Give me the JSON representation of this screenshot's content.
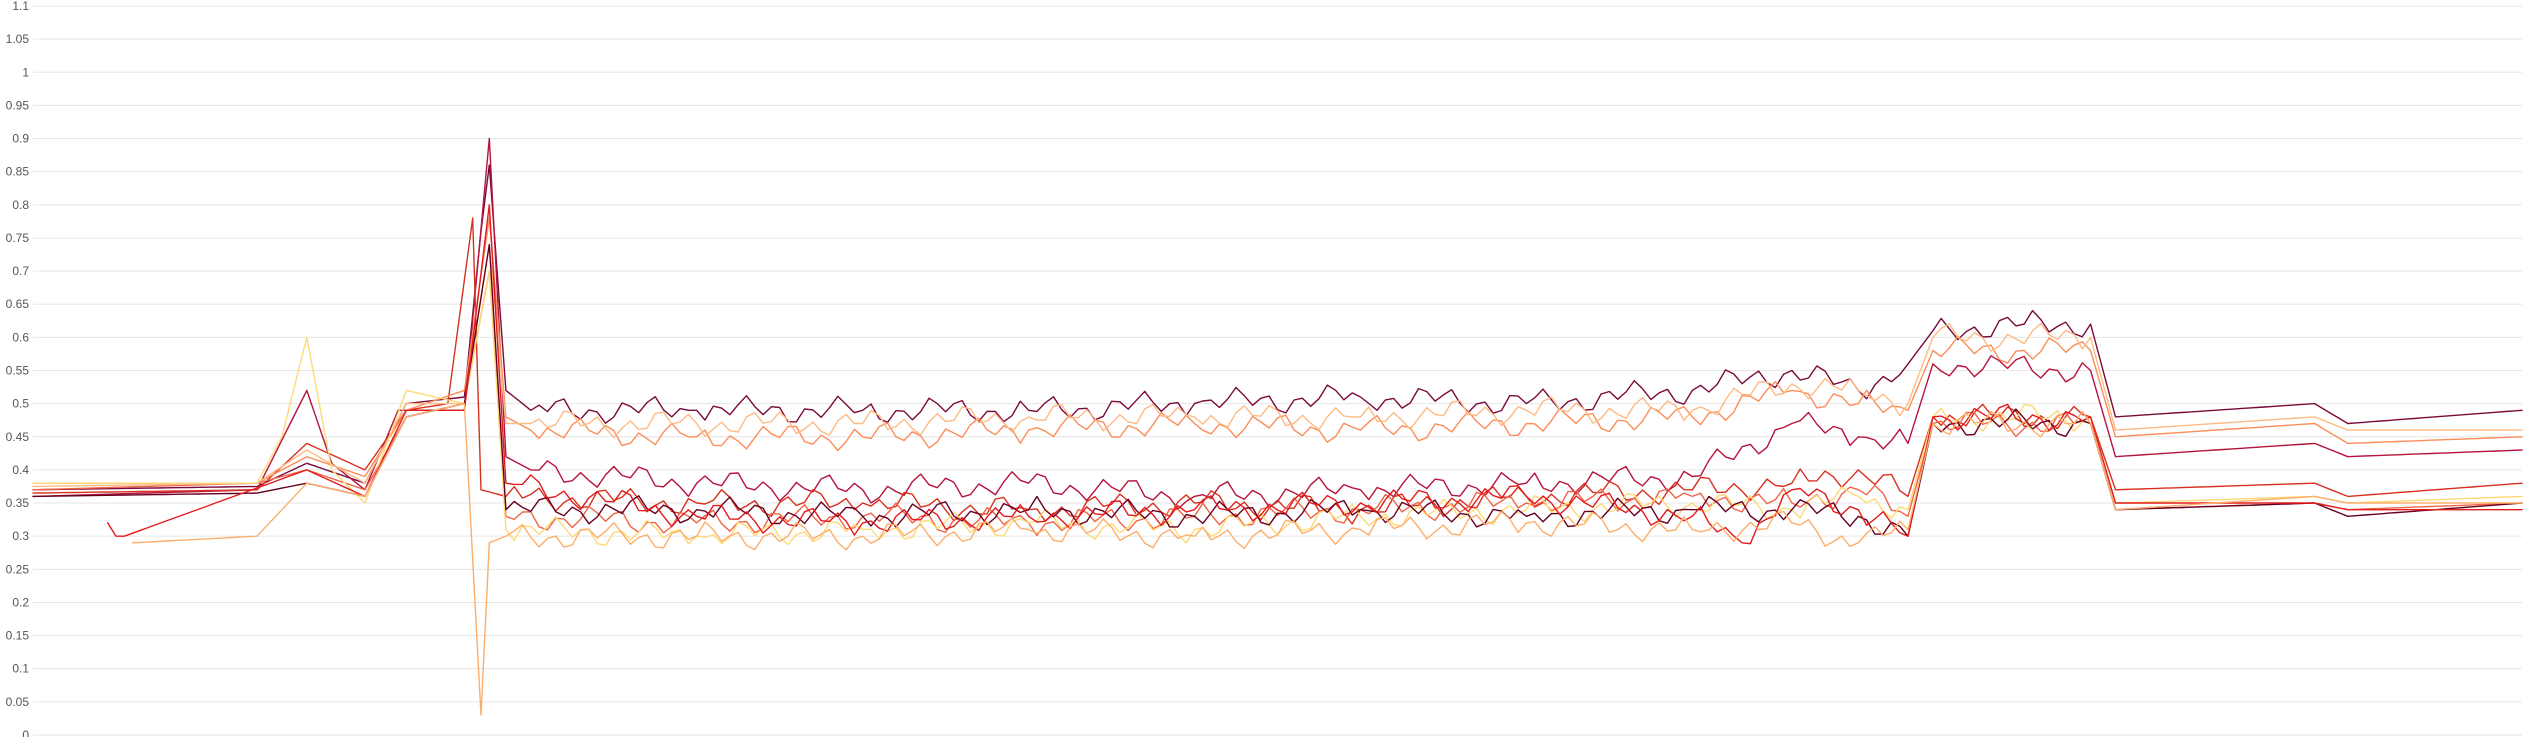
{
  "chart_data": {
    "type": "line",
    "title": "",
    "xlabel": "",
    "ylabel": "",
    "ylim": [
      0,
      1.1
    ],
    "yticks": [
      "0",
      "0.05",
      "0.1",
      "0.15",
      "0.2",
      "0.25",
      "0.3",
      "0.35",
      "0.4",
      "0.45",
      "0.5",
      "0.55",
      "0.6",
      "0.65",
      "0.7",
      "0.75",
      "0.8",
      "0.85",
      "0.9",
      "0.95",
      "1",
      "1.05",
      "1.1"
    ],
    "grid": true,
    "legend": "none",
    "x_count": 300,
    "series": [
      {
        "color": "#7a0a3b",
        "points": [
          [
            0,
            0.37
          ],
          [
            27,
            0.375
          ],
          [
            33,
            0.41
          ],
          [
            40,
            0.38
          ],
          [
            45,
            0.5
          ],
          [
            52,
            0.51
          ],
          [
            54,
            0.76
          ],
          [
            55,
            0.86
          ],
          [
            57,
            0.52
          ],
          [
            60,
            0.49
          ],
          [
            80,
            0.49
          ],
          [
            100,
            0.49
          ],
          [
            120,
            0.49
          ],
          [
            140,
            0.5
          ],
          [
            160,
            0.51
          ],
          [
            180,
            0.5
          ],
          [
            200,
            0.52
          ],
          [
            212,
            0.55
          ],
          [
            220,
            0.52
          ],
          [
            226,
            0.56
          ],
          [
            229,
            0.61
          ],
          [
            240,
            0.62
          ],
          [
            248,
            0.62
          ],
          [
            251,
            0.48
          ],
          [
            275,
            0.5
          ],
          [
            279,
            0.47
          ],
          [
            300,
            0.49
          ]
        ]
      },
      {
        "color": "#b5133c",
        "points": [
          [
            0,
            0.36
          ],
          [
            27,
            0.37
          ],
          [
            33,
            0.52
          ],
          [
            36,
            0.41
          ],
          [
            40,
            0.37
          ],
          [
            44,
            0.49
          ],
          [
            52,
            0.49
          ],
          [
            55,
            0.9
          ],
          [
            57,
            0.42
          ],
          [
            60,
            0.4
          ],
          [
            80,
            0.38
          ],
          [
            100,
            0.37
          ],
          [
            120,
            0.38
          ],
          [
            140,
            0.36
          ],
          [
            160,
            0.37
          ],
          [
            180,
            0.38
          ],
          [
            200,
            0.39
          ],
          [
            212,
            0.47
          ],
          [
            220,
            0.45
          ],
          [
            226,
            0.44
          ],
          [
            229,
            0.56
          ],
          [
            248,
            0.55
          ],
          [
            251,
            0.42
          ],
          [
            275,
            0.44
          ],
          [
            279,
            0.42
          ],
          [
            300,
            0.43
          ]
        ]
      },
      {
        "color": "#d7301f",
        "points": [
          [
            0,
            0.365
          ],
          [
            27,
            0.37
          ],
          [
            33,
            0.44
          ],
          [
            40,
            0.4
          ],
          [
            45,
            0.49
          ],
          [
            50,
            0.5
          ],
          [
            53,
            0.78
          ],
          [
            54,
            0.37
          ],
          [
            57,
            0.36
          ],
          [
            80,
            0.35
          ],
          [
            100,
            0.35
          ],
          [
            120,
            0.34
          ],
          [
            140,
            0.35
          ],
          [
            160,
            0.34
          ],
          [
            180,
            0.36
          ],
          [
            200,
            0.37
          ],
          [
            212,
            0.38
          ],
          [
            220,
            0.4
          ],
          [
            226,
            0.36
          ],
          [
            229,
            0.48
          ],
          [
            248,
            0.48
          ],
          [
            251,
            0.37
          ],
          [
            275,
            0.38
          ],
          [
            279,
            0.36
          ],
          [
            300,
            0.38
          ]
        ]
      },
      {
        "color": "#ef6548",
        "points": [
          [
            0,
            0.37
          ],
          [
            27,
            0.38
          ],
          [
            33,
            0.4
          ],
          [
            40,
            0.37
          ],
          [
            45,
            0.48
          ],
          [
            52,
            0.5
          ],
          [
            55,
            0.7
          ],
          [
            57,
            0.33
          ],
          [
            80,
            0.32
          ],
          [
            100,
            0.33
          ],
          [
            120,
            0.32
          ],
          [
            140,
            0.33
          ],
          [
            160,
            0.34
          ],
          [
            180,
            0.35
          ],
          [
            200,
            0.36
          ],
          [
            212,
            0.35
          ],
          [
            220,
            0.37
          ],
          [
            226,
            0.33
          ],
          [
            229,
            0.47
          ],
          [
            248,
            0.47
          ],
          [
            251,
            0.34
          ],
          [
            275,
            0.35
          ],
          [
            279,
            0.34
          ],
          [
            300,
            0.35
          ]
        ]
      },
      {
        "color": "#fc8d59",
        "points": [
          [
            0,
            0.38
          ],
          [
            27,
            0.38
          ],
          [
            33,
            0.42
          ],
          [
            40,
            0.39
          ],
          [
            45,
            0.49
          ],
          [
            52,
            0.52
          ],
          [
            55,
            0.78
          ],
          [
            57,
            0.48
          ],
          [
            60,
            0.46
          ],
          [
            80,
            0.45
          ],
          [
            100,
            0.45
          ],
          [
            120,
            0.46
          ],
          [
            140,
            0.47
          ],
          [
            160,
            0.46
          ],
          [
            180,
            0.47
          ],
          [
            200,
            0.48
          ],
          [
            212,
            0.52
          ],
          [
            220,
            0.5
          ],
          [
            226,
            0.49
          ],
          [
            229,
            0.58
          ],
          [
            248,
            0.58
          ],
          [
            251,
            0.45
          ],
          [
            275,
            0.47
          ],
          [
            279,
            0.44
          ],
          [
            300,
            0.45
          ]
        ]
      },
      {
        "color": "#fdbb84",
        "points": [
          [
            0,
            0.375
          ],
          [
            27,
            0.38
          ],
          [
            33,
            0.43
          ],
          [
            40,
            0.38
          ],
          [
            45,
            0.5
          ],
          [
            52,
            0.5
          ],
          [
            55,
            0.74
          ],
          [
            57,
            0.47
          ],
          [
            60,
            0.47
          ],
          [
            80,
            0.47
          ],
          [
            100,
            0.47
          ],
          [
            120,
            0.48
          ],
          [
            140,
            0.48
          ],
          [
            160,
            0.48
          ],
          [
            180,
            0.49
          ],
          [
            200,
            0.49
          ],
          [
            212,
            0.53
          ],
          [
            220,
            0.52
          ],
          [
            226,
            0.5
          ],
          [
            229,
            0.6
          ],
          [
            248,
            0.6
          ],
          [
            251,
            0.46
          ],
          [
            275,
            0.48
          ],
          [
            279,
            0.46
          ],
          [
            300,
            0.46
          ]
        ]
      },
      {
        "color": "#fed976",
        "points": [
          [
            0,
            0.38
          ],
          [
            27,
            0.38
          ],
          [
            30,
            0.45
          ],
          [
            33,
            0.6
          ],
          [
            36,
            0.4
          ],
          [
            40,
            0.35
          ],
          [
            45,
            0.52
          ],
          [
            52,
            0.5
          ],
          [
            55,
            0.7
          ],
          [
            57,
            0.31
          ],
          [
            80,
            0.3
          ],
          [
            100,
            0.31
          ],
          [
            120,
            0.32
          ],
          [
            140,
            0.31
          ],
          [
            160,
            0.33
          ],
          [
            180,
            0.34
          ],
          [
            200,
            0.35
          ],
          [
            212,
            0.34
          ],
          [
            220,
            0.36
          ],
          [
            226,
            0.34
          ],
          [
            229,
            0.48
          ],
          [
            248,
            0.48
          ],
          [
            251,
            0.35
          ],
          [
            275,
            0.36
          ],
          [
            279,
            0.35
          ],
          [
            300,
            0.36
          ]
        ]
      },
      {
        "color": "#67001f",
        "points": [
          [
            0,
            0.36
          ],
          [
            27,
            0.365
          ],
          [
            33,
            0.38
          ],
          [
            40,
            0.36
          ],
          [
            45,
            0.48
          ],
          [
            52,
            0.5
          ],
          [
            55,
            0.74
          ],
          [
            57,
            0.34
          ],
          [
            80,
            0.34
          ],
          [
            100,
            0.33
          ],
          [
            120,
            0.34
          ],
          [
            140,
            0.33
          ],
          [
            160,
            0.34
          ],
          [
            180,
            0.33
          ],
          [
            200,
            0.34
          ],
          [
            212,
            0.34
          ],
          [
            220,
            0.33
          ],
          [
            226,
            0.3
          ],
          [
            229,
            0.47
          ],
          [
            248,
            0.47
          ],
          [
            251,
            0.34
          ],
          [
            275,
            0.35
          ],
          [
            279,
            0.33
          ],
          [
            300,
            0.35
          ]
        ]
      },
      {
        "color": "#e31a1c",
        "points": [
          [
            9,
            0.32
          ],
          [
            10,
            0.3
          ],
          [
            11,
            0.3
          ],
          [
            33,
            0.4
          ],
          [
            40,
            0.36
          ],
          [
            45,
            0.49
          ],
          [
            52,
            0.49
          ],
          [
            55,
            0.8
          ],
          [
            57,
            0.38
          ],
          [
            80,
            0.33
          ],
          [
            100,
            0.32
          ],
          [
            120,
            0.33
          ],
          [
            140,
            0.34
          ],
          [
            160,
            0.35
          ],
          [
            180,
            0.36
          ],
          [
            200,
            0.33
          ],
          [
            206,
            0.29
          ],
          [
            212,
            0.37
          ],
          [
            220,
            0.34
          ],
          [
            226,
            0.3
          ],
          [
            229,
            0.48
          ],
          [
            248,
            0.48
          ],
          [
            251,
            0.35
          ],
          [
            275,
            0.35
          ],
          [
            279,
            0.34
          ],
          [
            300,
            0.34
          ]
        ]
      },
      {
        "color": "#fdae6b",
        "points": [
          [
            12,
            0.29
          ],
          [
            27,
            0.3
          ],
          [
            33,
            0.38
          ],
          [
            40,
            0.36
          ],
          [
            45,
            0.48
          ],
          [
            52,
            0.5
          ],
          [
            54,
            0.03
          ],
          [
            55,
            0.29
          ],
          [
            57,
            0.3
          ],
          [
            80,
            0.3
          ],
          [
            100,
            0.3
          ],
          [
            120,
            0.31
          ],
          [
            140,
            0.3
          ],
          [
            160,
            0.31
          ],
          [
            180,
            0.32
          ],
          [
            200,
            0.31
          ],
          [
            212,
            0.32
          ],
          [
            220,
            0.29
          ],
          [
            226,
            0.31
          ],
          [
            229,
            0.47
          ],
          [
            248,
            0.47
          ],
          [
            251,
            0.34
          ],
          [
            275,
            0.36
          ],
          [
            279,
            0.35
          ],
          [
            300,
            0.35
          ]
        ]
      }
    ]
  }
}
